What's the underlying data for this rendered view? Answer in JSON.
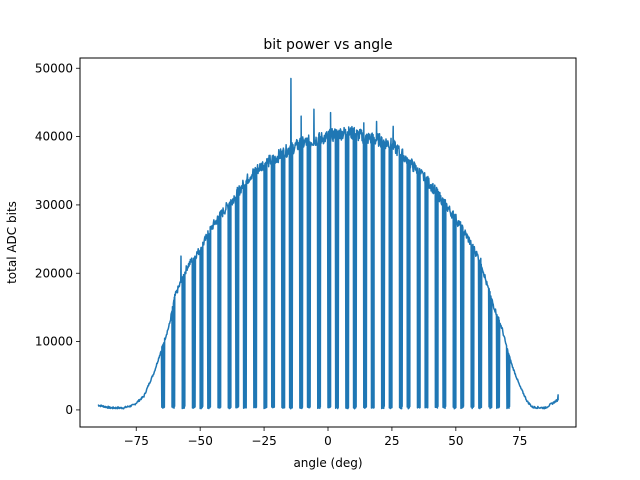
{
  "chart_data": {
    "type": "line",
    "title": "bit power vs angle",
    "xlabel": "angle (deg)",
    "ylabel": "total ADC bits",
    "xlim": [
      -97,
      97
    ],
    "ylim": [
      -2500,
      51500
    ],
    "xticks": [
      -75,
      -50,
      -25,
      0,
      25,
      50,
      75
    ],
    "xtick_labels": [
      "−75",
      "−50",
      "−25",
      "0",
      "25",
      "50",
      "75"
    ],
    "yticks": [
      0,
      10000,
      20000,
      30000,
      40000,
      50000
    ],
    "ytick_labels": [
      "0",
      "10000",
      "20000",
      "30000",
      "40000",
      "50000"
    ],
    "grid": false,
    "legend": "none",
    "series": [
      {
        "color": "#1f77b4",
        "envelope": {
          "angle": [
            -90,
            -85,
            -80,
            -76,
            -72,
            -70,
            -68,
            -65,
            -62,
            -60,
            -55,
            -50,
            -45,
            -40,
            -35,
            -30,
            -25,
            -20,
            -15,
            -10,
            -5,
            0,
            5,
            10,
            15,
            20,
            25,
            30,
            35,
            40,
            45,
            50,
            55,
            60,
            62,
            65,
            68,
            70,
            72,
            75,
            78,
            80,
            85,
            90
          ],
          "bits": [
            700,
            300,
            300,
            700,
            2000,
            3800,
            5500,
            9000,
            12500,
            16500,
            21000,
            23500,
            27000,
            29500,
            32000,
            34500,
            36000,
            37000,
            38200,
            39000,
            39500,
            40000,
            40500,
            40500,
            39800,
            39500,
            38800,
            37000,
            35000,
            33000,
            30500,
            28000,
            25000,
            21500,
            18500,
            15000,
            12000,
            9000,
            6500,
            3500,
            1200,
            400,
            300,
            1500
          ]
        },
        "gaps": [
          -65,
          -61,
          -57,
          -53,
          -50,
          -47,
          -43,
          -39,
          -36,
          -33,
          -29,
          -25,
          -22,
          -18,
          -15,
          -11,
          -8,
          -4,
          0,
          3,
          7,
          10,
          14,
          17,
          21,
          24,
          28,
          31,
          35,
          38,
          42,
          45,
          49,
          52,
          56,
          59,
          63,
          66,
          70
        ],
        "spikes": [
          {
            "angle": -14.5,
            "bits": 48500
          },
          {
            "angle": -5.5,
            "bits": 44000
          },
          {
            "angle": -10.5,
            "bits": 43000
          },
          {
            "angle": 1.0,
            "bits": 43500
          },
          {
            "angle": 19.0,
            "bits": 42200
          },
          {
            "angle": 14.0,
            "bits": 42000
          },
          {
            "angle": 25.5,
            "bits": 41500
          },
          {
            "angle": -57.5,
            "bits": 22500
          },
          {
            "angle": 90.0,
            "bits": 2200
          },
          {
            "angle": -90.0,
            "bits": 1600
          }
        ]
      }
    ]
  }
}
